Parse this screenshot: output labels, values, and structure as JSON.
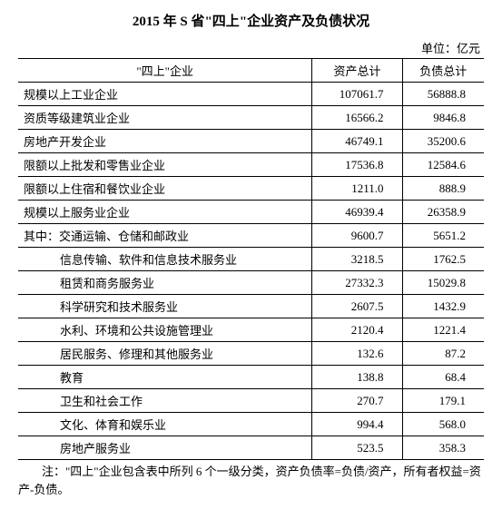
{
  "title": "2015 年 S 省\"四上\"企业资产及负债状况",
  "unit": "单位：亿元",
  "columns": {
    "category": "\"四上\"企业",
    "assets": "资产总计",
    "debt": "负债总计"
  },
  "rows": [
    {
      "cat": "规模以上工业企业",
      "assets": "107061.7",
      "debt": "56888.8",
      "indent": 0
    },
    {
      "cat": "资质等级建筑业企业",
      "assets": "16566.2",
      "debt": "9846.8",
      "indent": 0
    },
    {
      "cat": "房地产开发企业",
      "assets": "46749.1",
      "debt": "35200.6",
      "indent": 0
    },
    {
      "cat": "限额以上批发和零售业企业",
      "assets": "17536.8",
      "debt": "12584.6",
      "indent": 0
    },
    {
      "cat": "限额以上住宿和餐饮业企业",
      "assets": "1211.0",
      "debt": "888.9",
      "indent": 0
    },
    {
      "cat": "规模以上服务业企业",
      "assets": "46939.4",
      "debt": "26358.9",
      "indent": 0
    },
    {
      "cat": "其中：交通运输、仓储和邮政业",
      "assets": "9600.7",
      "debt": "5651.2",
      "indent": 0
    },
    {
      "cat": "信息传输、软件和信息技术服务业",
      "assets": "3218.5",
      "debt": "1762.5",
      "indent": 2
    },
    {
      "cat": "租赁和商务服务业",
      "assets": "27332.3",
      "debt": "15029.8",
      "indent": 2
    },
    {
      "cat": "科学研究和技术服务业",
      "assets": "2607.5",
      "debt": "1432.9",
      "indent": 2
    },
    {
      "cat": "水利、环境和公共设施管理业",
      "assets": "2120.4",
      "debt": "1221.4",
      "indent": 2
    },
    {
      "cat": "居民服务、修理和其他服务业",
      "assets": "132.6",
      "debt": "87.2",
      "indent": 2
    },
    {
      "cat": "教育",
      "assets": "138.8",
      "debt": "68.4",
      "indent": 2
    },
    {
      "cat": "卫生和社会工作",
      "assets": "270.7",
      "debt": "179.1",
      "indent": 2
    },
    {
      "cat": "文化、体育和娱乐业",
      "assets": "994.4",
      "debt": "568.0",
      "indent": 2
    },
    {
      "cat": "房地产服务业",
      "assets": "523.5",
      "debt": "358.3",
      "indent": 2
    }
  ],
  "footnote": "注：\"四上\"企业包含表中所列 6 个一级分类，资产负债率=负债/资产，所有者权益=资产-负债。"
}
